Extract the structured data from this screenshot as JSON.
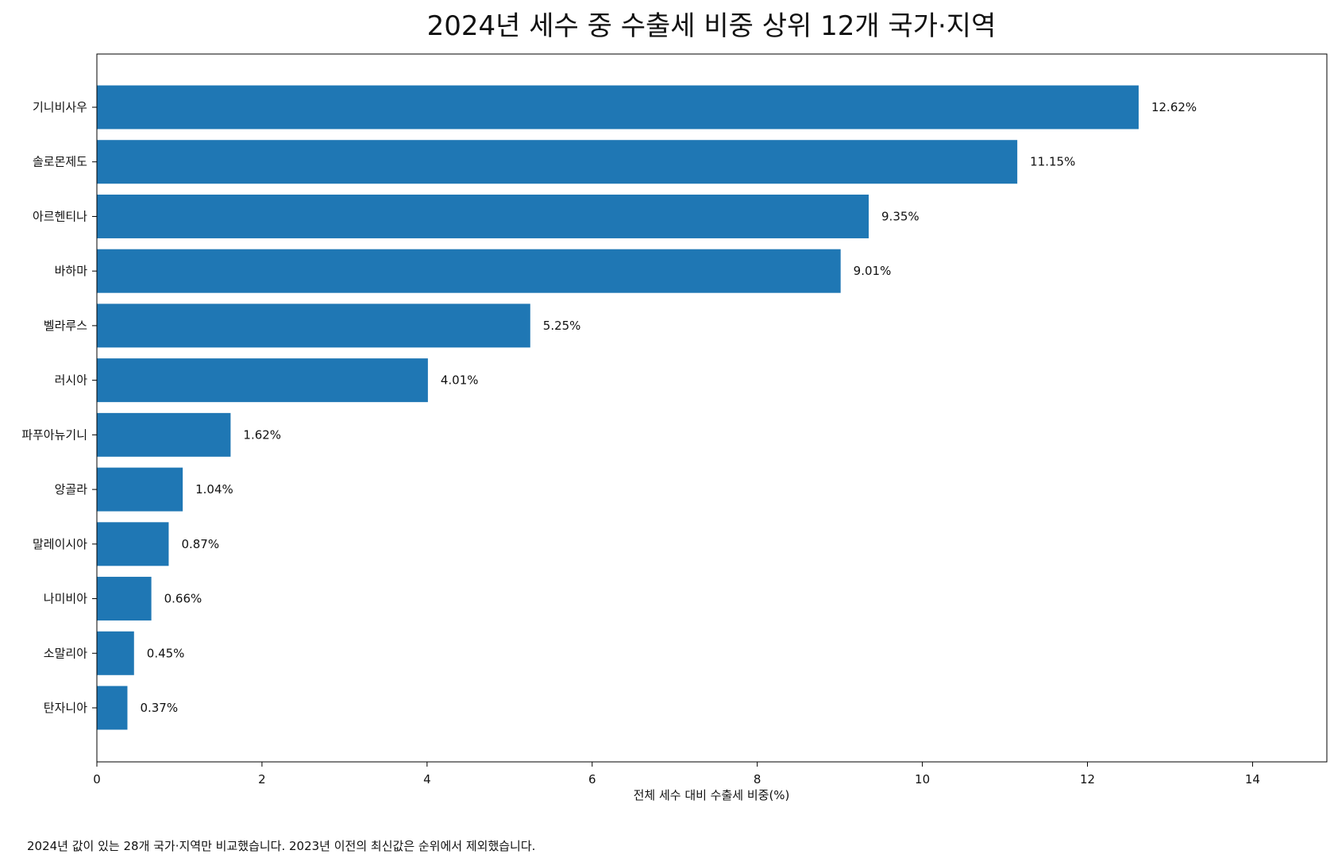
{
  "chart_data": {
    "type": "bar",
    "orientation": "horizontal",
    "title": "2024년 세수 중 수출세 비중 상위 12개 국가·지역",
    "xlabel": "전체 세수 대비 수출세 비중(%)",
    "ylabel": "",
    "xlim": [
      0,
      14.9
    ],
    "x_ticks": [
      "0",
      "2",
      "4",
      "6",
      "8",
      "10",
      "12",
      "14"
    ],
    "categories": [
      "기니비사우",
      "솔로몬제도",
      "아르헨티나",
      "바하마",
      "벨라루스",
      "러시아",
      "파푸아뉴기니",
      "앙골라",
      "말레이시아",
      "나미비아",
      "소말리아",
      "탄자니아"
    ],
    "values": [
      12.62,
      11.15,
      9.35,
      9.01,
      5.25,
      4.01,
      1.62,
      1.04,
      0.87,
      0.66,
      0.45,
      0.37
    ],
    "data_labels": [
      "12.62%",
      "11.15%",
      "9.35%",
      "9.01%",
      "5.25%",
      "4.01%",
      "1.62%",
      "1.04%",
      "0.87%",
      "0.66%",
      "0.45%",
      "0.37%"
    ],
    "bar_color": "#1f77b4",
    "grid": false,
    "legend": "none",
    "footnote": "2024년 값이 있는 28개 국가·지역만 비교했습니다. 2023년 이전의 최신값은 순위에서 제외했습니다."
  }
}
